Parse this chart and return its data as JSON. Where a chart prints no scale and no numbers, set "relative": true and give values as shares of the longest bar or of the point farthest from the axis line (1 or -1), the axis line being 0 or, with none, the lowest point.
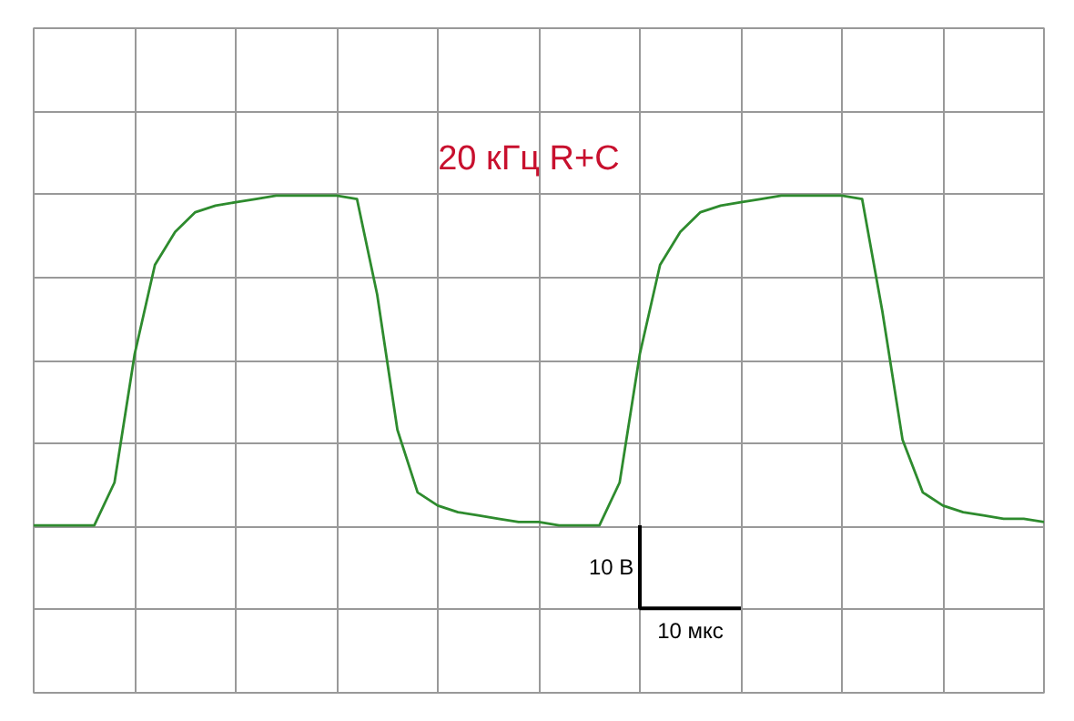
{
  "chart_data": {
    "type": "line",
    "title": "20 кГц R+C",
    "relative": true,
    "categories": [
      null,
      null,
      null,
      null,
      null,
      null,
      null,
      null,
      null,
      null,
      null,
      null,
      null,
      null,
      null,
      null,
      null,
      null,
      null,
      null,
      null,
      null,
      null,
      null,
      null,
      null,
      null,
      null,
      null,
      null,
      null,
      null,
      null,
      null,
      null,
      null,
      null,
      null,
      null,
      null,
      null,
      null,
      null,
      null,
      null,
      null,
      null,
      null,
      null,
      null,
      null
    ],
    "series": [
      {
        "color": "#2e8b2e",
        "values": [
          0,
          0,
          0,
          0,
          0.13,
          0.52,
          0.79,
          0.89,
          0.95,
          0.97,
          0.98,
          0.99,
          1,
          1,
          1,
          1,
          0.99,
          0.7,
          0.29,
          0.1,
          0.06,
          0.04,
          0.03,
          0.02,
          0.01,
          0.01,
          0,
          0,
          0,
          0.13,
          0.52,
          0.79,
          0.89,
          0.95,
          0.97,
          0.98,
          0.99,
          1,
          1,
          1,
          1,
          0.99,
          0.65,
          0.26,
          0.1,
          0.06,
          0.04,
          0.03,
          0.02,
          0.02,
          0.01
        ]
      }
    ],
    "grid": true,
    "marker": "none",
    "line_style": "solid",
    "annotations": [
      "10 В",
      "10 мкс"
    ]
  }
}
